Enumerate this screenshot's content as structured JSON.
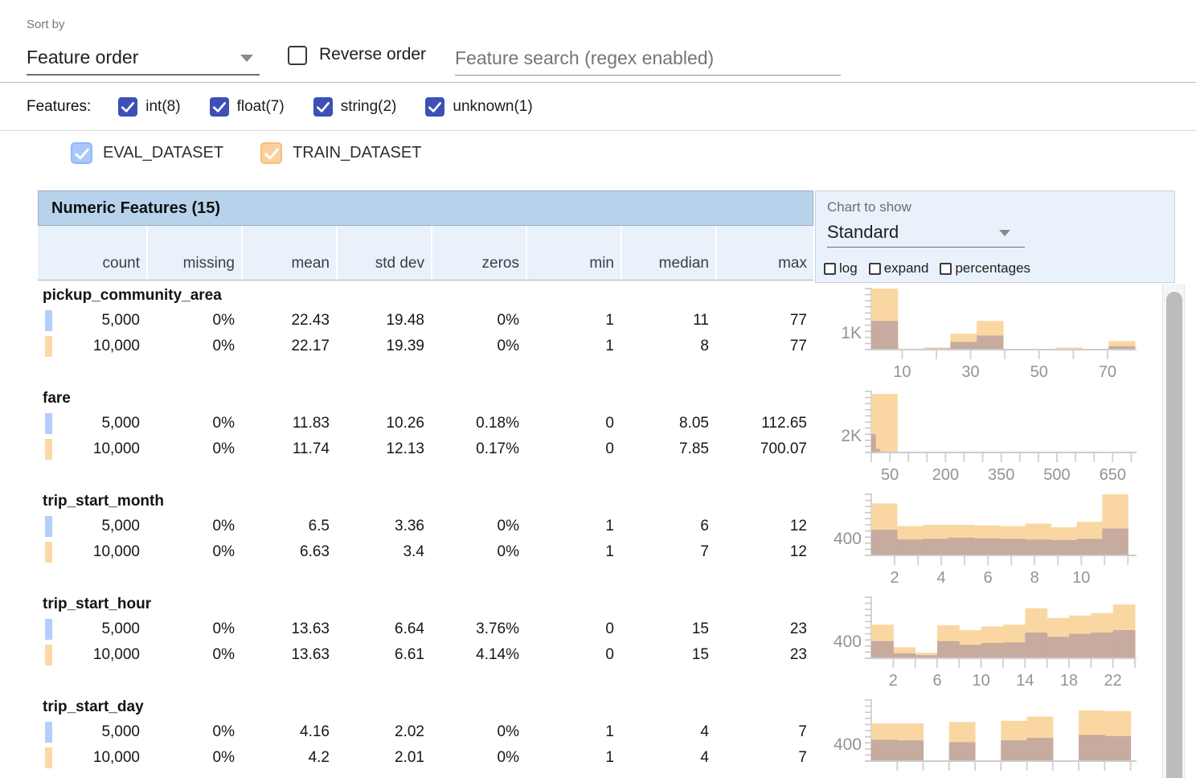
{
  "controls": {
    "sort_by_label": "Sort by",
    "sort_by_value": "Feature order",
    "reverse_order_label": "Reverse order",
    "search_placeholder": "Feature search (regex enabled)"
  },
  "filters": {
    "label": "Features:",
    "types": [
      {
        "label": "int(8)",
        "checked": true
      },
      {
        "label": "float(7)",
        "checked": true
      },
      {
        "label": "string(2)",
        "checked": true
      },
      {
        "label": "unknown(1)",
        "checked": true
      }
    ],
    "checkbox_color": "#3d50b5"
  },
  "datasets": [
    {
      "name": "EVAL_DATASET",
      "fill": "#a9c7fa",
      "border": "#92b6f8",
      "swatch": "#b3cefb"
    },
    {
      "name": "TRAIN_DATASET",
      "fill": "#fbd09b",
      "border": "#f2bf80",
      "swatch": "#fbd8a6"
    }
  ],
  "table": {
    "title": "Numeric Features (15)",
    "columns": [
      "count",
      "missing",
      "mean",
      "std dev",
      "zeros",
      "min",
      "median",
      "max"
    ]
  },
  "chart_controls": {
    "label": "Chart to show",
    "value": "Standard",
    "options": [
      {
        "label": "log",
        "checked": false
      },
      {
        "label": "expand",
        "checked": false
      },
      {
        "label": "percentages",
        "checked": false
      }
    ]
  },
  "features": [
    {
      "name": "pickup_community_area",
      "rows": [
        [
          "5,000",
          "0%",
          "22.43",
          "19.48",
          "0%",
          "1",
          "11",
          "77"
        ],
        [
          "10,000",
          "0%",
          "22.17",
          "19.39",
          "0%",
          "1",
          "8",
          "77"
        ]
      ]
    },
    {
      "name": "fare",
      "rows": [
        [
          "5,000",
          "0%",
          "11.83",
          "10.26",
          "0.18%",
          "0",
          "8.05",
          "112.65"
        ],
        [
          "10,000",
          "0%",
          "11.74",
          "12.13",
          "0.17%",
          "0",
          "7.85",
          "700.07"
        ]
      ]
    },
    {
      "name": "trip_start_month",
      "rows": [
        [
          "5,000",
          "0%",
          "6.5",
          "3.36",
          "0%",
          "1",
          "6",
          "12"
        ],
        [
          "10,000",
          "0%",
          "6.63",
          "3.4",
          "0%",
          "1",
          "7",
          "12"
        ]
      ]
    },
    {
      "name": "trip_start_hour",
      "rows": [
        [
          "5,000",
          "0%",
          "13.63",
          "6.64",
          "3.76%",
          "0",
          "15",
          "23"
        ],
        [
          "10,000",
          "0%",
          "13.63",
          "6.61",
          "4.14%",
          "0",
          "15",
          "23"
        ]
      ]
    },
    {
      "name": "trip_start_day",
      "rows": [
        [
          "5,000",
          "0%",
          "4.16",
          "2.02",
          "0%",
          "1",
          "4",
          "7"
        ],
        [
          "10,000",
          "0%",
          "4.2",
          "2.01",
          "0%",
          "1",
          "4",
          "7"
        ]
      ]
    }
  ],
  "chart_data": [
    {
      "type": "histogram",
      "feature": "pickup_community_area",
      "y_tick_label": "1K",
      "x_domain": [
        1,
        78
      ],
      "x_ticks": [
        {
          "v": 10,
          "label": "10"
        },
        {
          "v": 20,
          "label": ""
        },
        {
          "v": 30,
          "label": "30"
        },
        {
          "v": 40,
          "label": ""
        },
        {
          "v": 50,
          "label": "50"
        },
        {
          "v": 60,
          "label": ""
        },
        {
          "v": 70,
          "label": "70"
        }
      ],
      "series": [
        {
          "name": "TRAIN_DATASET",
          "color": "#fad7a2",
          "bars": [
            {
              "x": 1,
              "w": 7.7,
              "h": 1.0
            },
            {
              "x": 8.7,
              "w": 7.7,
              "h": 0.015
            },
            {
              "x": 16.4,
              "w": 7.7,
              "h": 0.035
            },
            {
              "x": 24.1,
              "w": 7.7,
              "h": 0.26
            },
            {
              "x": 31.8,
              "w": 7.7,
              "h": 0.47
            },
            {
              "x": 39.5,
              "w": 7.7,
              "h": 0.012
            },
            {
              "x": 47.2,
              "w": 7.7,
              "h": 0.006
            },
            {
              "x": 54.9,
              "w": 7.7,
              "h": 0.035
            },
            {
              "x": 62.6,
              "w": 7.7,
              "h": 0.006
            },
            {
              "x": 70.3,
              "w": 7.7,
              "h": 0.14
            }
          ]
        },
        {
          "name": "EVAL_DATASET_overlap",
          "color": "#c6ab9e",
          "bars": [
            {
              "x": 1,
              "w": 7.7,
              "h": 0.47
            },
            {
              "x": 8.7,
              "w": 7.7,
              "h": 0.008
            },
            {
              "x": 16.4,
              "w": 7.7,
              "h": 0.018
            },
            {
              "x": 24.1,
              "w": 7.7,
              "h": 0.125
            },
            {
              "x": 31.8,
              "w": 7.7,
              "h": 0.23
            },
            {
              "x": 39.5,
              "w": 7.7,
              "h": 0.006
            },
            {
              "x": 47.2,
              "w": 7.7,
              "h": 0.003
            },
            {
              "x": 54.9,
              "w": 7.7,
              "h": 0.012
            },
            {
              "x": 62.6,
              "w": 7.7,
              "h": 0.003
            },
            {
              "x": 70.3,
              "w": 7.7,
              "h": 0.055
            }
          ]
        }
      ]
    },
    {
      "type": "histogram",
      "feature": "fare",
      "y_tick_label": "2K",
      "x_domain": [
        0,
        710
      ],
      "x_ticks": [
        {
          "v": 0,
          "label": ""
        },
        {
          "v": 50,
          "label": "50"
        },
        {
          "v": 100,
          "label": ""
        },
        {
          "v": 150,
          "label": ""
        },
        {
          "v": 200,
          "label": "200"
        },
        {
          "v": 250,
          "label": ""
        },
        {
          "v": 300,
          "label": ""
        },
        {
          "v": 350,
          "label": "350"
        },
        {
          "v": 400,
          "label": ""
        },
        {
          "v": 450,
          "label": ""
        },
        {
          "v": 500,
          "label": "500"
        },
        {
          "v": 550,
          "label": ""
        },
        {
          "v": 600,
          "label": ""
        },
        {
          "v": 650,
          "label": "650"
        },
        {
          "v": 700,
          "label": ""
        }
      ],
      "series": [
        {
          "name": "TRAIN_DATASET",
          "color": "#fad7a2",
          "bars": [
            {
              "x": 0,
              "w": 70,
              "h": 0.96
            },
            {
              "x": 70,
              "w": 70,
              "h": 0.006
            }
          ]
        },
        {
          "name": "EVAL_DATASET_overlap",
          "color": "#c6ab9e",
          "bars": [
            {
              "x": 0,
              "w": 11.3,
              "h": 0.3
            },
            {
              "x": 11.3,
              "w": 11.3,
              "h": 0.06
            },
            {
              "x": 22.6,
              "w": 11.3,
              "h": 0.018
            },
            {
              "x": 33.9,
              "w": 11.3,
              "h": 0.006
            }
          ]
        }
      ]
    },
    {
      "type": "histogram",
      "feature": "trip_start_month",
      "y_tick_label": "400",
      "x_domain": [
        1,
        12.3
      ],
      "x_ticks": [
        {
          "v": 2,
          "label": "2"
        },
        {
          "v": 3,
          "label": ""
        },
        {
          "v": 4,
          "label": "4"
        },
        {
          "v": 5,
          "label": ""
        },
        {
          "v": 6,
          "label": "6"
        },
        {
          "v": 7,
          "label": ""
        },
        {
          "v": 8,
          "label": "8"
        },
        {
          "v": 9,
          "label": ""
        },
        {
          "v": 10,
          "label": "10"
        },
        {
          "v": 11,
          "label": ""
        },
        {
          "v": 12,
          "label": ""
        }
      ],
      "series": [
        {
          "name": "TRAIN_DATASET",
          "color": "#fad7a2",
          "bars": [
            {
              "x": 1,
              "w": 1.1,
              "h": 0.85
            },
            {
              "x": 2.1,
              "w": 1.1,
              "h": 0.48
            },
            {
              "x": 3.2,
              "w": 1.1,
              "h": 0.5
            },
            {
              "x": 4.3,
              "w": 1.1,
              "h": 0.5
            },
            {
              "x": 5.4,
              "w": 1.1,
              "h": 0.49
            },
            {
              "x": 6.5,
              "w": 1.1,
              "h": 0.48
            },
            {
              "x": 7.6,
              "w": 1.1,
              "h": 0.52
            },
            {
              "x": 8.7,
              "w": 1.1,
              "h": 0.46
            },
            {
              "x": 9.8,
              "w": 1.1,
              "h": 0.55
            },
            {
              "x": 10.9,
              "w": 1.1,
              "h": 1.0
            }
          ]
        },
        {
          "name": "EVAL_DATASET_overlap",
          "color": "#c6ab9e",
          "bars": [
            {
              "x": 1,
              "w": 1.1,
              "h": 0.42
            },
            {
              "x": 2.1,
              "w": 1.1,
              "h": 0.26
            },
            {
              "x": 3.2,
              "w": 1.1,
              "h": 0.27
            },
            {
              "x": 4.3,
              "w": 1.1,
              "h": 0.29
            },
            {
              "x": 5.4,
              "w": 1.1,
              "h": 0.28
            },
            {
              "x": 6.5,
              "w": 1.1,
              "h": 0.27
            },
            {
              "x": 7.6,
              "w": 1.1,
              "h": 0.26
            },
            {
              "x": 8.7,
              "w": 1.1,
              "h": 0.25
            },
            {
              "x": 9.8,
              "w": 1.1,
              "h": 0.27
            },
            {
              "x": 10.9,
              "w": 1.1,
              "h": 0.44
            }
          ]
        }
      ]
    },
    {
      "type": "histogram",
      "feature": "trip_start_hour",
      "y_tick_label": "400",
      "x_domain": [
        0,
        24
      ],
      "x_ticks": [
        {
          "v": 2,
          "label": "2"
        },
        {
          "v": 4,
          "label": ""
        },
        {
          "v": 6,
          "label": "6"
        },
        {
          "v": 8,
          "label": ""
        },
        {
          "v": 10,
          "label": "10"
        },
        {
          "v": 12,
          "label": ""
        },
        {
          "v": 14,
          "label": "14"
        },
        {
          "v": 16,
          "label": ""
        },
        {
          "v": 18,
          "label": "18"
        },
        {
          "v": 20,
          "label": ""
        },
        {
          "v": 22,
          "label": "22"
        },
        {
          "v": 24,
          "label": ""
        }
      ],
      "series": [
        {
          "name": "TRAIN_DATASET",
          "color": "#fad7a2",
          "bars": [
            {
              "x": 0,
              "w": 2,
              "h": 0.55
            },
            {
              "x": 2,
              "w": 2,
              "h": 0.18
            },
            {
              "x": 4,
              "w": 2,
              "h": 0.09
            },
            {
              "x": 6,
              "w": 2,
              "h": 0.54
            },
            {
              "x": 8,
              "w": 2,
              "h": 0.46
            },
            {
              "x": 10,
              "w": 2,
              "h": 0.52
            },
            {
              "x": 12,
              "w": 2,
              "h": 0.55
            },
            {
              "x": 14,
              "w": 2,
              "h": 0.82
            },
            {
              "x": 16,
              "w": 2,
              "h": 0.66
            },
            {
              "x": 18,
              "w": 2,
              "h": 0.7
            },
            {
              "x": 20,
              "w": 2,
              "h": 0.74
            },
            {
              "x": 22,
              "w": 2,
              "h": 0.88
            }
          ]
        },
        {
          "name": "EVAL_DATASET_overlap",
          "color": "#c6ab9e",
          "bars": [
            {
              "x": 0,
              "w": 2,
              "h": 0.28
            },
            {
              "x": 2,
              "w": 2,
              "h": 0.08
            },
            {
              "x": 4,
              "w": 2,
              "h": 0.05
            },
            {
              "x": 6,
              "w": 2,
              "h": 0.28
            },
            {
              "x": 8,
              "w": 2,
              "h": 0.22
            },
            {
              "x": 10,
              "w": 2,
              "h": 0.25
            },
            {
              "x": 12,
              "w": 2,
              "h": 0.26
            },
            {
              "x": 14,
              "w": 2,
              "h": 0.42
            },
            {
              "x": 16,
              "w": 2,
              "h": 0.35
            },
            {
              "x": 18,
              "w": 2,
              "h": 0.4
            },
            {
              "x": 20,
              "w": 2,
              "h": 0.42
            },
            {
              "x": 22,
              "w": 2,
              "h": 0.46
            }
          ]
        }
      ]
    },
    {
      "type": "histogram",
      "feature": "trip_start_day",
      "y_tick_label": "400",
      "x_domain": [
        1,
        7.1
      ],
      "x_ticks": [
        {
          "v": 1.6,
          "label": ""
        },
        {
          "v": 2.2,
          "label": ""
        },
        {
          "v": 2.8,
          "label": ""
        },
        {
          "v": 3.4,
          "label": ""
        },
        {
          "v": 4.0,
          "label": ""
        },
        {
          "v": 4.6,
          "label": ""
        },
        {
          "v": 5.2,
          "label": ""
        },
        {
          "v": 5.8,
          "label": ""
        },
        {
          "v": 6.4,
          "label": ""
        },
        {
          "v": 7.0,
          "label": ""
        }
      ],
      "series": [
        {
          "name": "TRAIN_DATASET",
          "color": "#fad7a2",
          "bars": [
            {
              "x": 1.0,
              "w": 0.6,
              "h": 0.62
            },
            {
              "x": 1.6,
              "w": 0.6,
              "h": 0.62
            },
            {
              "x": 2.8,
              "w": 0.6,
              "h": 0.64
            },
            {
              "x": 4.0,
              "w": 0.6,
              "h": 0.66
            },
            {
              "x": 4.6,
              "w": 0.6,
              "h": 0.73
            },
            {
              "x": 5.8,
              "w": 0.6,
              "h": 0.83
            },
            {
              "x": 6.4,
              "w": 0.6,
              "h": 0.82
            }
          ]
        },
        {
          "name": "EVAL_DATASET_overlap",
          "color": "#c6ab9e",
          "bars": [
            {
              "x": 1.0,
              "w": 0.6,
              "h": 0.35
            },
            {
              "x": 1.6,
              "w": 0.6,
              "h": 0.34
            },
            {
              "x": 2.8,
              "w": 0.6,
              "h": 0.31
            },
            {
              "x": 4.0,
              "w": 0.6,
              "h": 0.34
            },
            {
              "x": 4.6,
              "w": 0.6,
              "h": 0.38
            },
            {
              "x": 5.8,
              "w": 0.6,
              "h": 0.43
            },
            {
              "x": 6.4,
              "w": 0.6,
              "h": 0.41
            }
          ]
        }
      ]
    }
  ],
  "colors": {
    "header_band": "#b9d2ec",
    "header_row": "#e9f1fa",
    "panel_bg": "#e9f1fa",
    "train_bar": "#fad7a2",
    "overlap_bar": "#c6ab9e",
    "axis": "#c6c6c6",
    "tick_label": "#949494"
  }
}
